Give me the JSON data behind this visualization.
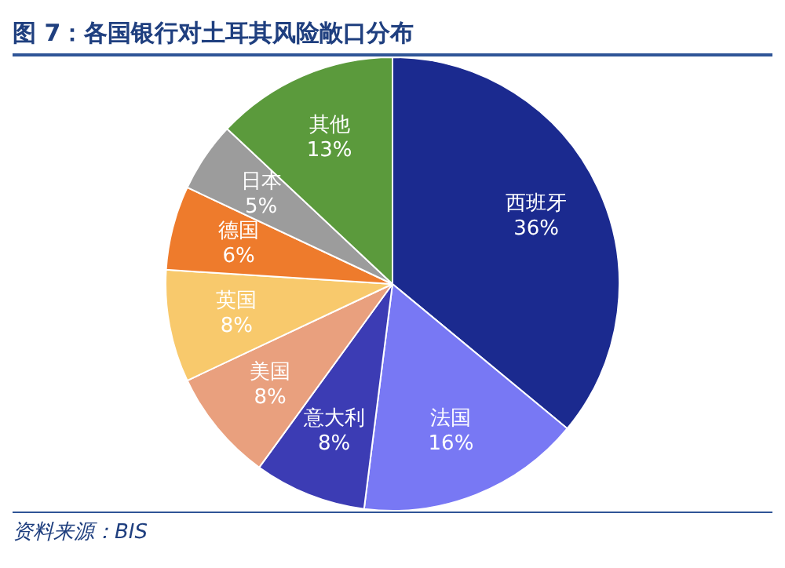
{
  "chart_data": {
    "type": "pie",
    "title": "图 7：各国银行对土耳其风险敞口分布",
    "categories": [
      "西班牙",
      "法国",
      "意大利",
      "美国",
      "英国",
      "德国",
      "日本",
      "其他"
    ],
    "values": [
      36,
      16,
      8,
      8,
      8,
      6,
      5,
      13
    ],
    "value_labels": [
      "36%",
      "16%",
      "8%",
      "8%",
      "8%",
      "6%",
      "5%",
      "13%"
    ],
    "colors": [
      "#1b2a8f",
      "#7878f4",
      "#3c3cb4",
      "#e9a07e",
      "#f8c96c",
      "#ee7b2c",
      "#9c9c9c",
      "#5b9a3c"
    ],
    "legend": false,
    "annotations": [
      "资料来源：BIS"
    ]
  }
}
